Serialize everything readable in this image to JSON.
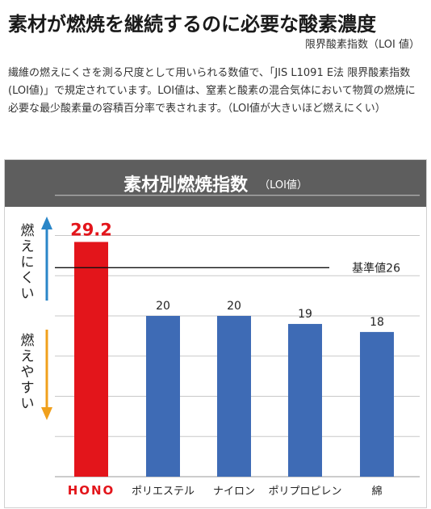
{
  "header": {
    "title": "素材が燃焼を継続するのに必要な酸素濃度",
    "subtitle": "限界酸素指数（LOI 値）"
  },
  "description": "繊維の燃えにくさを測る尺度として用いられる数値で、「JIS L1091 E法 限界酸素指数(LOI値)」で規定されています。LOI値は、窒素と酸素の混合気体において物質の燃焼に必要な最少酸素量の容積百分率で表されます。（LOI値が大きいほど燃えにくい）",
  "chart_data": {
    "type": "bar",
    "title": "素材別燃焼指数",
    "title_note": "（LOI値）",
    "categories": [
      "HONO",
      "ポリエステル",
      "ナイロン",
      "ポリプロピレン",
      "綿"
    ],
    "values": [
      29.2,
      20,
      20,
      19,
      18
    ],
    "value_labels": [
      "29.2",
      "20",
      "20",
      "19",
      "18"
    ],
    "ylim": [
      0,
      35
    ],
    "grid": true,
    "reference_line": {
      "value": 26,
      "label": "基準値26"
    },
    "colors": {
      "highlight": "#e3151b",
      "bar": "#3e6bb5",
      "up_arrow": "#2a86c8",
      "down_arrow": "#f0a01c",
      "grid": "#c8c8c8"
    },
    "arrow_labels": {
      "up": "燃えにくい",
      "down": "燃えやすい"
    }
  }
}
